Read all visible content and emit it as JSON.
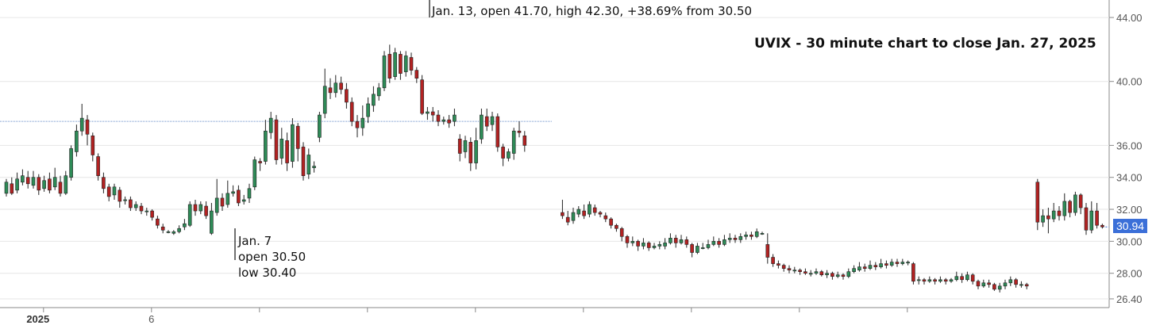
{
  "chart_data": {
    "type": "candlestick",
    "title": "UVIX - 30 minute chart to close Jan. 27, 2025",
    "y_axis": {
      "ticks": [
        "44.00",
        "40.00",
        "36.00",
        "34.00",
        "32.00",
        "30.00",
        "28.00",
        "26.40"
      ],
      "tick_values": [
        44,
        40,
        36,
        34,
        32,
        30,
        28,
        26.4
      ],
      "ylim": [
        26.2,
        44.4
      ],
      "side": "right"
    },
    "x_axis": {
      "labels": [
        {
          "text": "2025",
          "bold": true,
          "bar": 6
        },
        {
          "text": "6",
          "bold": false,
          "bar": 26
        }
      ],
      "tick_bars": [
        6,
        26,
        46,
        66,
        86,
        106,
        126,
        146,
        166
      ]
    },
    "reference_line": 37.5,
    "last_price": "30.94",
    "annotations": [
      {
        "lines": [
          "Jan. 13, open 41.70, high 42.30, +38.69% from 30.50"
        ],
        "anchor_bar": 66
      },
      {
        "lines": [
          "Jan. 7",
          "open 30.50",
          "low 30.40"
        ],
        "anchor_bar": 36
      }
    ],
    "candles": [
      [
        33.0,
        33.7,
        33.9,
        32.8
      ],
      [
        33.6,
        33.0,
        34.0,
        32.9
      ],
      [
        33.2,
        33.9,
        34.3,
        33.0
      ],
      [
        33.7,
        34.1,
        34.5,
        33.5
      ],
      [
        34.0,
        33.6,
        34.4,
        33.3
      ],
      [
        33.5,
        34.0,
        34.4,
        33.3
      ],
      [
        34.0,
        33.2,
        34.2,
        32.9
      ],
      [
        33.3,
        33.8,
        34.1,
        33.1
      ],
      [
        33.9,
        33.2,
        34.3,
        33.0
      ],
      [
        33.4,
        34.0,
        34.6,
        33.2
      ],
      [
        33.7,
        33.0,
        34.1,
        32.8
      ],
      [
        33.0,
        34.1,
        34.4,
        32.9
      ],
      [
        34.0,
        35.8,
        36.0,
        33.8
      ],
      [
        35.6,
        36.9,
        37.3,
        35.3
      ],
      [
        36.9,
        37.7,
        38.6,
        36.6
      ],
      [
        37.6,
        36.7,
        37.9,
        36.0
      ],
      [
        36.6,
        35.4,
        36.8,
        35.0
      ],
      [
        35.3,
        34.1,
        35.5,
        33.8
      ],
      [
        34.0,
        33.3,
        34.3,
        33.0
      ],
      [
        33.4,
        32.8,
        33.6,
        32.5
      ],
      [
        32.9,
        33.4,
        33.6,
        32.6
      ],
      [
        33.2,
        32.5,
        33.4,
        32.1
      ],
      [
        32.6,
        32.6,
        32.8,
        32.3
      ],
      [
        32.6,
        32.1,
        32.8,
        31.9
      ],
      [
        32.1,
        32.3,
        32.5,
        31.9
      ],
      [
        32.2,
        31.9,
        32.4,
        31.7
      ],
      [
        31.9,
        31.9,
        32.1,
        31.6
      ],
      [
        31.9,
        31.5,
        32.0,
        31.3
      ],
      [
        31.4,
        31.0,
        31.6,
        30.8
      ],
      [
        30.9,
        30.7,
        31.1,
        30.5
      ],
      [
        30.6,
        30.6,
        30.7,
        30.5
      ],
      [
        30.5,
        30.6,
        30.7,
        30.4
      ],
      [
        30.6,
        30.8,
        31.0,
        30.5
      ],
      [
        30.9,
        31.1,
        31.4,
        30.7
      ],
      [
        31.0,
        32.3,
        32.5,
        30.9
      ],
      [
        32.3,
        31.9,
        32.6,
        31.6
      ],
      [
        31.9,
        32.3,
        32.5,
        31.7
      ],
      [
        32.2,
        31.6,
        32.5,
        31.4
      ],
      [
        30.5,
        31.9,
        32.4,
        30.4
      ],
      [
        31.8,
        32.7,
        33.9,
        31.6
      ],
      [
        32.7,
        32.2,
        33.0,
        31.9
      ],
      [
        32.3,
        33.0,
        33.8,
        32.1
      ],
      [
        33.0,
        33.1,
        33.5,
        32.8
      ],
      [
        33.2,
        32.4,
        33.5,
        32.2
      ],
      [
        32.5,
        32.6,
        32.9,
        32.3
      ],
      [
        32.7,
        33.3,
        33.6,
        32.4
      ],
      [
        33.4,
        35.1,
        35.3,
        33.2
      ],
      [
        35.0,
        34.9,
        35.2,
        34.4
      ],
      [
        35.0,
        36.9,
        37.6,
        34.8
      ],
      [
        36.8,
        37.7,
        38.1,
        36.4
      ],
      [
        37.6,
        35.1,
        37.9,
        34.8
      ],
      [
        35.2,
        36.4,
        37.1,
        34.8
      ],
      [
        36.3,
        34.9,
        36.8,
        34.4
      ],
      [
        35.0,
        37.3,
        37.7,
        34.6
      ],
      [
        37.2,
        35.8,
        37.4,
        35.0
      ],
      [
        35.9,
        34.1,
        36.2,
        33.8
      ],
      [
        34.2,
        35.4,
        35.8,
        33.9
      ],
      [
        34.6,
        34.7,
        35.0,
        34.3
      ],
      [
        36.5,
        37.9,
        38.1,
        36.2
      ],
      [
        38.0,
        39.7,
        40.8,
        37.7
      ],
      [
        39.6,
        39.3,
        40.2,
        38.9
      ],
      [
        39.3,
        39.9,
        40.4,
        39.0
      ],
      [
        39.9,
        39.5,
        40.3,
        39.2
      ],
      [
        39.5,
        38.7,
        39.9,
        38.3
      ],
      [
        38.7,
        37.5,
        39.0,
        37.2
      ],
      [
        37.5,
        37.1,
        37.9,
        36.5
      ],
      [
        37.1,
        37.7,
        38.5,
        36.6
      ],
      [
        37.8,
        38.6,
        39.0,
        37.4
      ],
      [
        38.5,
        39.2,
        39.7,
        38.1
      ],
      [
        39.1,
        39.6,
        39.9,
        38.8
      ],
      [
        39.6,
        41.6,
        41.9,
        39.4
      ],
      [
        41.7,
        40.2,
        42.3,
        39.9
      ],
      [
        40.3,
        41.8,
        42.1,
        40.1
      ],
      [
        41.7,
        40.5,
        41.9,
        40.1
      ],
      [
        40.6,
        41.6,
        41.9,
        40.3
      ],
      [
        41.5,
        40.7,
        41.8,
        40.4
      ],
      [
        40.7,
        40.2,
        40.9,
        39.9
      ],
      [
        40.1,
        38.0,
        40.4,
        37.9
      ],
      [
        38.0,
        38.1,
        38.4,
        37.6
      ],
      [
        38.1,
        37.9,
        38.4,
        37.5
      ],
      [
        37.9,
        37.5,
        38.2,
        37.2
      ],
      [
        37.5,
        37.6,
        37.8,
        37.3
      ],
      [
        37.6,
        37.4,
        37.9,
        37.1
      ],
      [
        37.5,
        37.9,
        38.3,
        37.2
      ],
      [
        36.4,
        35.5,
        36.7,
        35.0
      ],
      [
        35.6,
        36.3,
        36.6,
        35.2
      ],
      [
        36.2,
        34.9,
        36.5,
        34.4
      ],
      [
        34.9,
        36.3,
        37.1,
        34.5
      ],
      [
        36.4,
        37.9,
        38.3,
        36.1
      ],
      [
        37.8,
        37.2,
        38.3,
        36.9
      ],
      [
        37.3,
        37.8,
        38.1,
        36.9
      ],
      [
        37.8,
        35.9,
        38.0,
        35.6
      ],
      [
        35.9,
        35.2,
        36.1,
        34.7
      ],
      [
        35.2,
        35.6,
        35.8,
        35.0
      ],
      [
        35.5,
        36.9,
        37.1,
        35.1
      ],
      [
        36.9,
        36.8,
        37.5,
        36.5
      ],
      [
        36.6,
        36.0,
        36.9,
        35.6
      ]
    ],
    "candles_segment2": [
      [
        31.8,
        31.6,
        32.6,
        31.4
      ],
      [
        31.5,
        31.2,
        31.9,
        31.0
      ],
      [
        31.3,
        31.8,
        32.1,
        31.1
      ],
      [
        31.7,
        32.0,
        32.2,
        31.5
      ],
      [
        31.9,
        31.6,
        32.3,
        31.4
      ],
      [
        31.7,
        32.3,
        32.5,
        31.5
      ],
      [
        32.1,
        31.8,
        32.3,
        31.6
      ],
      [
        31.8,
        31.7,
        31.9,
        31.5
      ],
      [
        31.6,
        31.4,
        31.8,
        31.2
      ],
      [
        31.4,
        31.0,
        31.5,
        30.8
      ],
      [
        31.0,
        30.8,
        31.1,
        30.6
      ],
      [
        30.8,
        30.3,
        30.9,
        30.0
      ],
      [
        30.3,
        29.9,
        30.4,
        29.6
      ],
      [
        29.9,
        30.0,
        30.3,
        29.7
      ],
      [
        30.0,
        29.7,
        30.1,
        29.4
      ],
      [
        29.7,
        29.9,
        30.2,
        29.5
      ],
      [
        29.9,
        29.6,
        30.0,
        29.4
      ],
      [
        29.6,
        29.7,
        29.9,
        29.5
      ],
      [
        29.7,
        29.8,
        30.0,
        29.5
      ],
      [
        29.7,
        29.9,
        30.2,
        29.5
      ],
      [
        29.9,
        30.2,
        30.5,
        29.8
      ],
      [
        30.2,
        29.9,
        30.4,
        29.6
      ],
      [
        29.9,
        30.1,
        30.4,
        29.8
      ],
      [
        30.1,
        29.8,
        30.3,
        29.6
      ],
      [
        29.8,
        29.3,
        29.9,
        29.0
      ],
      [
        29.3,
        29.7,
        29.9,
        29.2
      ],
      [
        29.6,
        29.6,
        29.9,
        29.5
      ],
      [
        29.6,
        29.8,
        30.1,
        29.5
      ],
      [
        29.8,
        30.0,
        30.3,
        29.7
      ],
      [
        30.0,
        29.8,
        30.2,
        29.6
      ],
      [
        29.8,
        30.1,
        30.4,
        29.7
      ],
      [
        30.1,
        30.2,
        30.5,
        29.9
      ],
      [
        30.2,
        30.1,
        30.4,
        29.9
      ],
      [
        30.1,
        30.3,
        30.5,
        29.9
      ],
      [
        30.3,
        30.4,
        30.6,
        30.1
      ],
      [
        30.4,
        30.3,
        30.6,
        30.1
      ],
      [
        30.3,
        30.6,
        30.8,
        30.2
      ],
      [
        30.5,
        30.5,
        30.6,
        30.4
      ],
      [
        29.8,
        29.0,
        30.5,
        28.6
      ],
      [
        29.0,
        28.6,
        29.2,
        28.4
      ],
      [
        28.6,
        28.5,
        28.8,
        28.3
      ],
      [
        28.5,
        28.3,
        28.6,
        28.1
      ],
      [
        28.3,
        28.2,
        28.5,
        28.0
      ],
      [
        28.2,
        28.2,
        28.4,
        28.0
      ],
      [
        28.2,
        28.1,
        28.3,
        27.9
      ],
      [
        28.1,
        28.0,
        28.3,
        27.9
      ],
      [
        28.0,
        28.0,
        28.2,
        27.8
      ],
      [
        28.0,
        28.1,
        28.3,
        27.9
      ],
      [
        28.1,
        27.9,
        28.2,
        27.8
      ],
      [
        27.9,
        28.0,
        28.2,
        27.7
      ],
      [
        28.0,
        27.8,
        28.1,
        27.6
      ],
      [
        27.8,
        27.9,
        28.1,
        27.7
      ],
      [
        27.9,
        27.8,
        28.0,
        27.6
      ],
      [
        27.8,
        28.1,
        28.3,
        27.7
      ],
      [
        28.1,
        28.3,
        28.5,
        28.0
      ],
      [
        28.2,
        28.4,
        28.7,
        28.1
      ],
      [
        28.4,
        28.3,
        28.6,
        28.1
      ],
      [
        28.3,
        28.5,
        28.8,
        28.2
      ],
      [
        28.5,
        28.4,
        28.7,
        28.2
      ],
      [
        28.4,
        28.6,
        28.9,
        28.3
      ],
      [
        28.6,
        28.5,
        28.8,
        28.3
      ],
      [
        28.5,
        28.7,
        28.9,
        28.4
      ],
      [
        28.7,
        28.6,
        28.9,
        28.4
      ],
      [
        28.6,
        28.7,
        28.9,
        28.5
      ],
      [
        28.7,
        28.7,
        28.8,
        28.5
      ],
      [
        28.6,
        27.5,
        28.7,
        27.3
      ],
      [
        27.6,
        27.6,
        27.8,
        27.3
      ],
      [
        27.6,
        27.5,
        27.7,
        27.3
      ],
      [
        27.5,
        27.6,
        27.8,
        27.4
      ],
      [
        27.6,
        27.5,
        27.7,
        27.3
      ],
      [
        27.5,
        27.6,
        27.8,
        27.4
      ],
      [
        27.6,
        27.5,
        27.7,
        27.3
      ],
      [
        27.5,
        27.6,
        27.7,
        27.4
      ],
      [
        27.6,
        27.8,
        28.1,
        27.5
      ],
      [
        27.8,
        27.6,
        28.0,
        27.4
      ],
      [
        27.6,
        27.9,
        28.1,
        27.5
      ],
      [
        27.9,
        27.5,
        28.0,
        27.3
      ],
      [
        27.5,
        27.2,
        27.6,
        27.0
      ],
      [
        27.2,
        27.4,
        27.6,
        27.1
      ],
      [
        27.4,
        27.3,
        27.6,
        27.1
      ],
      [
        27.3,
        27.0,
        27.4,
        26.9
      ],
      [
        27.0,
        27.2,
        27.4,
        26.8
      ],
      [
        27.2,
        27.4,
        27.6,
        27.0
      ],
      [
        27.4,
        27.6,
        27.8,
        27.2
      ],
      [
        27.6,
        27.3,
        27.7,
        27.1
      ],
      [
        27.3,
        27.3,
        27.5,
        27.1
      ],
      [
        27.3,
        27.2,
        27.4,
        27.0
      ]
    ],
    "candles_segment3": [
      [
        33.7,
        31.2,
        33.9,
        30.7
      ],
      [
        31.2,
        31.6,
        32.0,
        30.9
      ],
      [
        31.6,
        31.4,
        32.1,
        30.5
      ],
      [
        31.4,
        31.9,
        32.4,
        31.2
      ],
      [
        31.9,
        31.6,
        32.2,
        31.3
      ],
      [
        31.6,
        32.5,
        33.0,
        31.3
      ],
      [
        32.5,
        31.8,
        32.6,
        31.5
      ],
      [
        31.8,
        32.9,
        33.1,
        31.6
      ],
      [
        32.9,
        32.1,
        33.0,
        31.7
      ],
      [
        32.1,
        30.7,
        32.4,
        30.4
      ],
      [
        30.7,
        31.9,
        32.5,
        30.5
      ],
      [
        31.9,
        31.0,
        32.4,
        30.8
      ],
      [
        31.0,
        30.9,
        31.1,
        30.8
      ]
    ]
  },
  "colors": {
    "up": "#2e8b57",
    "down": "#b22222",
    "grid": "#e6e6e6",
    "ref_line": "#6b8fc9",
    "badge": "#3b6fd8"
  }
}
